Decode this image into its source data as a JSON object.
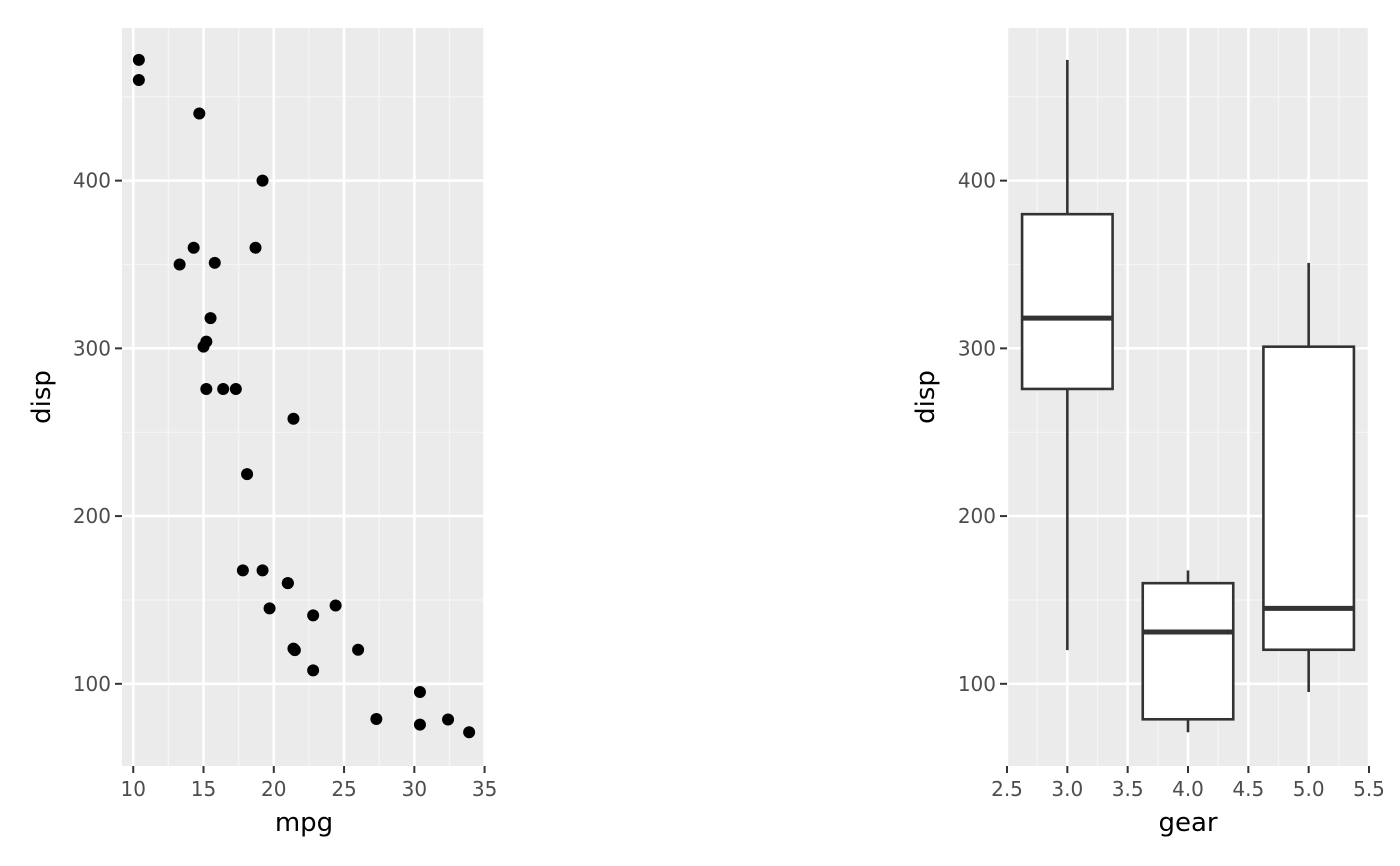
{
  "colors": {
    "panel_background": "#ebebeb",
    "grid_major": "#ffffff",
    "grid_minor": "#f5f5f5",
    "tick_mark": "#333333",
    "tick_text": "#4d4d4d",
    "point": "#000000",
    "box_line": "#333333",
    "box_fill": "#ffffff"
  },
  "chart_data": [
    {
      "type": "scatter",
      "xlabel": "mpg",
      "ylabel": "disp",
      "xlim": [
        9.2,
        35.1
      ],
      "ylim": [
        51,
        491
      ],
      "x_ticks": [
        10,
        15,
        20,
        25,
        30,
        35
      ],
      "x_tick_labels": [
        "10",
        "15",
        "20",
        "25",
        "30",
        "35"
      ],
      "y_ticks": [
        100,
        200,
        300,
        400
      ],
      "y_tick_labels": [
        "100",
        "200",
        "300",
        "400"
      ],
      "grid": true,
      "points": [
        {
          "x": 21.0,
          "y": 160
        },
        {
          "x": 21.0,
          "y": 160
        },
        {
          "x": 22.8,
          "y": 108
        },
        {
          "x": 21.4,
          "y": 258
        },
        {
          "x": 18.7,
          "y": 360
        },
        {
          "x": 18.1,
          "y": 225
        },
        {
          "x": 14.3,
          "y": 360
        },
        {
          "x": 24.4,
          "y": 146.7
        },
        {
          "x": 22.8,
          "y": 140.8
        },
        {
          "x": 19.2,
          "y": 167.6
        },
        {
          "x": 17.8,
          "y": 167.6
        },
        {
          "x": 16.4,
          "y": 275.8
        },
        {
          "x": 17.3,
          "y": 275.8
        },
        {
          "x": 15.2,
          "y": 275.8
        },
        {
          "x": 10.4,
          "y": 472
        },
        {
          "x": 10.4,
          "y": 460
        },
        {
          "x": 14.7,
          "y": 440
        },
        {
          "x": 32.4,
          "y": 78.7
        },
        {
          "x": 30.4,
          "y": 75.7
        },
        {
          "x": 33.9,
          "y": 71.1
        },
        {
          "x": 21.5,
          "y": 120.1
        },
        {
          "x": 15.5,
          "y": 318
        },
        {
          "x": 15.2,
          "y": 304
        },
        {
          "x": 13.3,
          "y": 350
        },
        {
          "x": 19.2,
          "y": 400
        },
        {
          "x": 27.3,
          "y": 79
        },
        {
          "x": 26.0,
          "y": 120.3
        },
        {
          "x": 30.4,
          "y": 95.1
        },
        {
          "x": 15.8,
          "y": 351
        },
        {
          "x": 19.7,
          "y": 145
        },
        {
          "x": 15.0,
          "y": 301
        },
        {
          "x": 21.4,
          "y": 121
        }
      ]
    },
    {
      "type": "box",
      "xlabel": "gear",
      "ylabel": "disp",
      "xlim": [
        2.5,
        5.5
      ],
      "ylim": [
        51,
        491
      ],
      "x_ticks": [
        2.5,
        3.0,
        3.5,
        4.0,
        4.5,
        5.0,
        5.5
      ],
      "x_tick_labels": [
        "2.5",
        "3.0",
        "3.5",
        "4.0",
        "4.5",
        "5.0",
        "5.5"
      ],
      "y_ticks": [
        100,
        200,
        300,
        400
      ],
      "y_tick_labels": [
        "100",
        "200",
        "300",
        "400"
      ],
      "grid": true,
      "boxes": [
        {
          "x": 3,
          "width": 0.75,
          "ymin": 120.1,
          "lower": 275.8,
          "middle": 318,
          "upper": 380,
          "ymax": 472
        },
        {
          "x": 4,
          "width": 0.75,
          "ymin": 71.1,
          "lower": 78.85,
          "middle": 130.9,
          "upper": 160,
          "ymax": 167.6
        },
        {
          "x": 5,
          "width": 0.75,
          "ymin": 95.1,
          "lower": 120.3,
          "middle": 145,
          "upper": 301,
          "ymax": 351
        }
      ]
    }
  ]
}
